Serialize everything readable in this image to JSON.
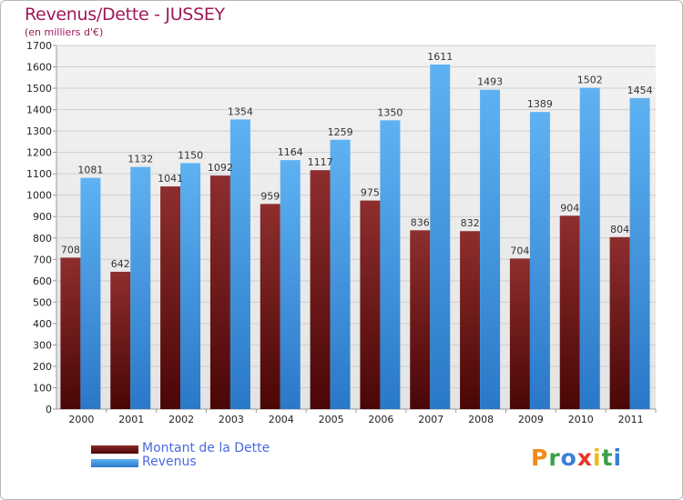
{
  "title": "Revenus/Dette - JUSSEY",
  "subtitle": "(en milliers d'€)",
  "colors": {
    "dette": "#6b0f0f",
    "dette_light": "#8a2a2a",
    "revenus": "#3a8fdc",
    "revenus_light": "#5bb0f0",
    "title": "#a01858",
    "legend_text": "#4a6ae0"
  },
  "chart_data": {
    "type": "bar",
    "title": "Revenus/Dette - JUSSEY",
    "subtitle": "(en milliers d'€)",
    "categories": [
      "2000",
      "2001",
      "2002",
      "2003",
      "2004",
      "2005",
      "2006",
      "2007",
      "2008",
      "2009",
      "2010",
      "2011"
    ],
    "series": [
      {
        "name": "Montant de la Dette",
        "values": [
          708,
          642,
          1041,
          1092,
          959,
          1117,
          975,
          836,
          832,
          704,
          904,
          804
        ]
      },
      {
        "name": "Revenus",
        "values": [
          1081,
          1132,
          1150,
          1354,
          1164,
          1259,
          1350,
          1611,
          1493,
          1389,
          1502,
          1454
        ]
      }
    ],
    "yticks": [
      "0",
      "100",
      "200",
      "300",
      "400",
      "500",
      "600",
      "700",
      "800",
      "900",
      "1000",
      "1100",
      "1200",
      "1300",
      "1400",
      "1500",
      "1600",
      "1700"
    ],
    "ylim": [
      0,
      1700
    ],
    "grid": true,
    "legend": "bottom-left"
  },
  "legend": {
    "items": [
      {
        "label": "Montant de la Dette"
      },
      {
        "label": "Revenus"
      }
    ]
  },
  "logo": {
    "letters": [
      "P",
      "r",
      "o",
      "x",
      "i",
      "t",
      "i"
    ],
    "colors": [
      "#f08a1c",
      "#3aa04a",
      "#3a7fd8",
      "#e8372a",
      "#f0b81c",
      "#3aa04a",
      "#3a7fd8"
    ]
  }
}
